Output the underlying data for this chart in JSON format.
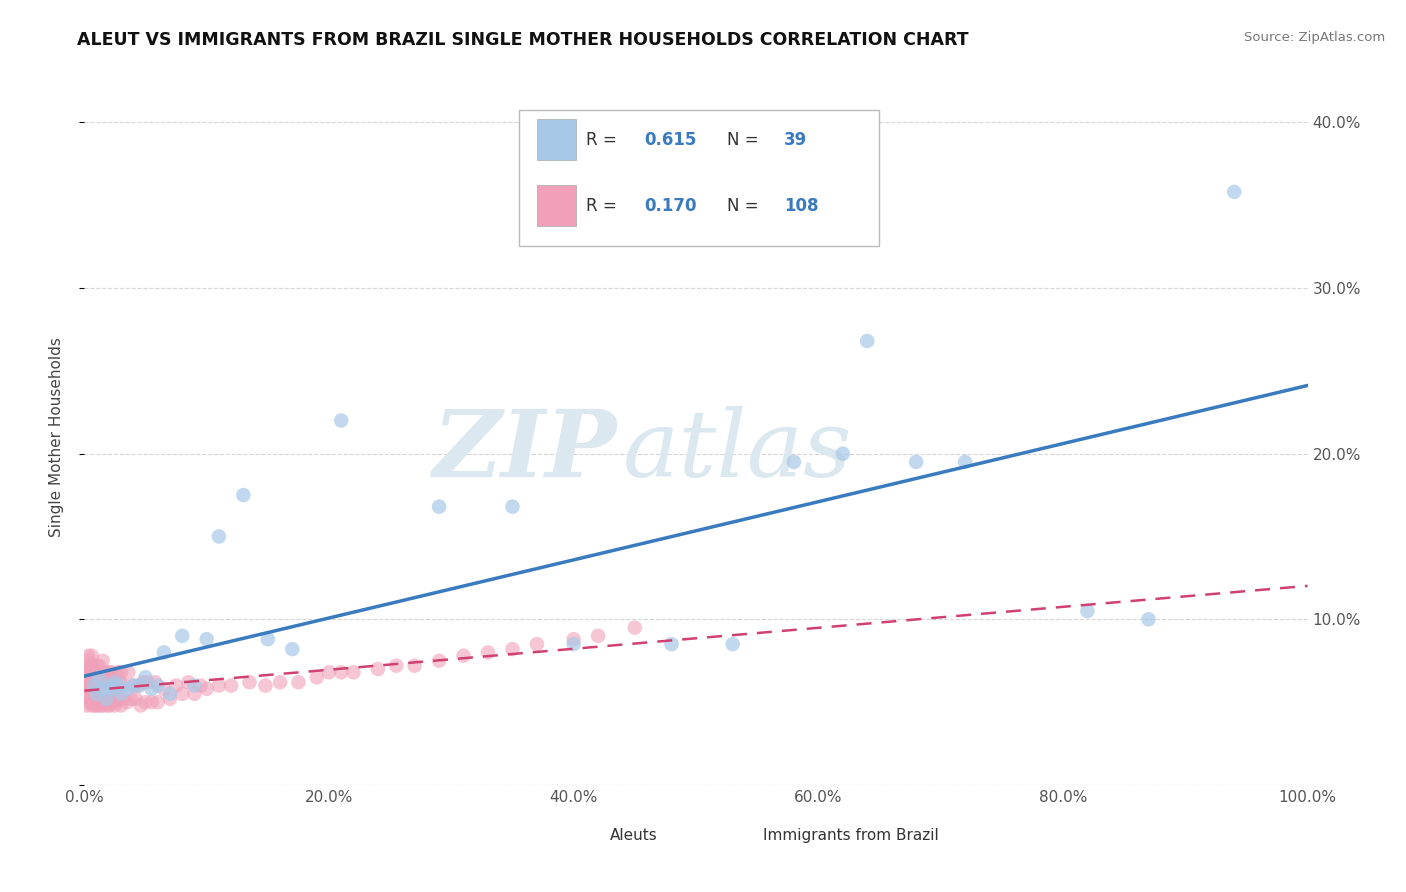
{
  "title": "ALEUT VS IMMIGRANTS FROM BRAZIL SINGLE MOTHER HOUSEHOLDS CORRELATION CHART",
  "source": "Source: ZipAtlas.com",
  "ylabel": "Single Mother Households",
  "xlim": [
    0,
    1.0
  ],
  "ylim": [
    0,
    0.42
  ],
  "xticks": [
    0.0,
    0.2,
    0.4,
    0.6,
    0.8,
    1.0
  ],
  "xticklabels": [
    "0.0%",
    "20.0%",
    "40.0%",
    "60.0%",
    "80.0%",
    "100.0%"
  ],
  "yticks": [
    0.0,
    0.1,
    0.2,
    0.3,
    0.4
  ],
  "yticklabels": [
    "",
    "10.0%",
    "20.0%",
    "30.0%",
    "40.0%"
  ],
  "aleut_color": "#a8c8e8",
  "brazil_color": "#f0a0b8",
  "aleut_line_color": "#3a7abf",
  "brazil_line_color": "#d04070",
  "aleut_R": 0.615,
  "aleut_N": 39,
  "brazil_R": 0.17,
  "brazil_N": 108,
  "legend_labels": [
    "Aleuts",
    "Immigrants from Brazil"
  ],
  "watermark_zip": "ZIP",
  "watermark_atlas": "atlas",
  "aleut_x": [
    0.008,
    0.01,
    0.012,
    0.015,
    0.018,
    0.02,
    0.022,
    0.025,
    0.028,
    0.03,
    0.035,
    0.04,
    0.045,
    0.05,
    0.055,
    0.06,
    0.065,
    0.07,
    0.08,
    0.09,
    0.1,
    0.11,
    0.13,
    0.15,
    0.17,
    0.21,
    0.29,
    0.35,
    0.4,
    0.48,
    0.53,
    0.58,
    0.62,
    0.64,
    0.68,
    0.72,
    0.82,
    0.87,
    0.94
  ],
  "aleut_y": [
    0.06,
    0.055,
    0.065,
    0.058,
    0.052,
    0.06,
    0.058,
    0.062,
    0.06,
    0.055,
    0.058,
    0.06,
    0.06,
    0.065,
    0.058,
    0.06,
    0.08,
    0.055,
    0.09,
    0.06,
    0.088,
    0.15,
    0.175,
    0.088,
    0.082,
    0.22,
    0.168,
    0.168,
    0.085,
    0.085,
    0.085,
    0.195,
    0.2,
    0.268,
    0.195,
    0.195,
    0.105,
    0.1,
    0.358
  ],
  "brazil_x": [
    0.001,
    0.001,
    0.002,
    0.002,
    0.002,
    0.003,
    0.003,
    0.003,
    0.003,
    0.004,
    0.004,
    0.004,
    0.004,
    0.005,
    0.005,
    0.005,
    0.006,
    0.006,
    0.006,
    0.006,
    0.007,
    0.007,
    0.007,
    0.008,
    0.008,
    0.008,
    0.009,
    0.009,
    0.01,
    0.01,
    0.01,
    0.011,
    0.011,
    0.012,
    0.012,
    0.012,
    0.013,
    0.013,
    0.014,
    0.014,
    0.015,
    0.015,
    0.015,
    0.016,
    0.016,
    0.017,
    0.017,
    0.018,
    0.018,
    0.019,
    0.02,
    0.02,
    0.021,
    0.021,
    0.022,
    0.022,
    0.023,
    0.024,
    0.025,
    0.025,
    0.026,
    0.027,
    0.028,
    0.029,
    0.03,
    0.03,
    0.032,
    0.033,
    0.035,
    0.036,
    0.038,
    0.04,
    0.042,
    0.044,
    0.046,
    0.048,
    0.05,
    0.052,
    0.055,
    0.058,
    0.06,
    0.065,
    0.07,
    0.075,
    0.08,
    0.085,
    0.09,
    0.095,
    0.1,
    0.11,
    0.12,
    0.135,
    0.148,
    0.16,
    0.175,
    0.19,
    0.2,
    0.21,
    0.22,
    0.24,
    0.255,
    0.27,
    0.29,
    0.31,
    0.33,
    0.35,
    0.37,
    0.4,
    0.42,
    0.45
  ],
  "brazil_y": [
    0.058,
    0.062,
    0.048,
    0.06,
    0.068,
    0.055,
    0.062,
    0.07,
    0.078,
    0.05,
    0.058,
    0.068,
    0.075,
    0.052,
    0.06,
    0.072,
    0.048,
    0.058,
    0.065,
    0.078,
    0.05,
    0.06,
    0.072,
    0.048,
    0.058,
    0.068,
    0.05,
    0.065,
    0.048,
    0.058,
    0.072,
    0.052,
    0.065,
    0.048,
    0.06,
    0.072,
    0.052,
    0.062,
    0.048,
    0.062,
    0.05,
    0.062,
    0.075,
    0.048,
    0.065,
    0.052,
    0.068,
    0.05,
    0.065,
    0.048,
    0.052,
    0.068,
    0.048,
    0.062,
    0.05,
    0.068,
    0.052,
    0.055,
    0.048,
    0.065,
    0.05,
    0.068,
    0.052,
    0.062,
    0.048,
    0.068,
    0.052,
    0.06,
    0.05,
    0.068,
    0.052,
    0.06,
    0.052,
    0.06,
    0.048,
    0.062,
    0.05,
    0.062,
    0.05,
    0.062,
    0.05,
    0.058,
    0.052,
    0.06,
    0.055,
    0.062,
    0.055,
    0.06,
    0.058,
    0.06,
    0.06,
    0.062,
    0.06,
    0.062,
    0.062,
    0.065,
    0.068,
    0.068,
    0.068,
    0.07,
    0.072,
    0.072,
    0.075,
    0.078,
    0.08,
    0.082,
    0.085,
    0.088,
    0.09,
    0.095
  ]
}
